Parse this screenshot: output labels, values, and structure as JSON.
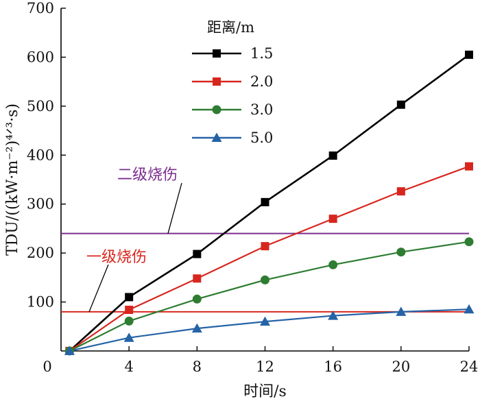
{
  "chart_data": {
    "type": "line",
    "title": "",
    "xlabel": "时间/s",
    "ylabel": "TDU/((kW·m⁻²)⁴ᐟ³·s)",
    "xlim": [
      0,
      24
    ],
    "ylim": [
      0,
      700
    ],
    "x_ticks": [
      0,
      4,
      8,
      12,
      16,
      20,
      24
    ],
    "y_ticks": [
      100,
      200,
      300,
      400,
      500,
      600,
      700
    ],
    "x": [
      0.5,
      4,
      8,
      12,
      16,
      20,
      24
    ],
    "legend": {
      "title": "距离/m",
      "position": "top-left"
    },
    "series": [
      {
        "name": "1.5",
        "color": "#000000",
        "marker": "square",
        "values": [
          0,
          110,
          198,
          304,
          399,
          503,
          605
        ]
      },
      {
        "name": "2.0",
        "color": "#d7261e",
        "marker": "square",
        "values": [
          0,
          84,
          148,
          214,
          270,
          326,
          377
        ]
      },
      {
        "name": "3.0",
        "color": "#2e7d32",
        "marker": "circle",
        "values": [
          0,
          61,
          106,
          145,
          176,
          202,
          223
        ]
      },
      {
        "name": "5.0",
        "color": "#2563a6",
        "marker": "triangle",
        "values": [
          0,
          27,
          46,
          60,
          72,
          80,
          85
        ]
      }
    ],
    "thresholds": [
      {
        "label": "二级烧伤",
        "value": 240,
        "color": "#7b2d8e"
      },
      {
        "label": "一级烧伤",
        "value": 80,
        "color": "#d7261e"
      }
    ]
  }
}
